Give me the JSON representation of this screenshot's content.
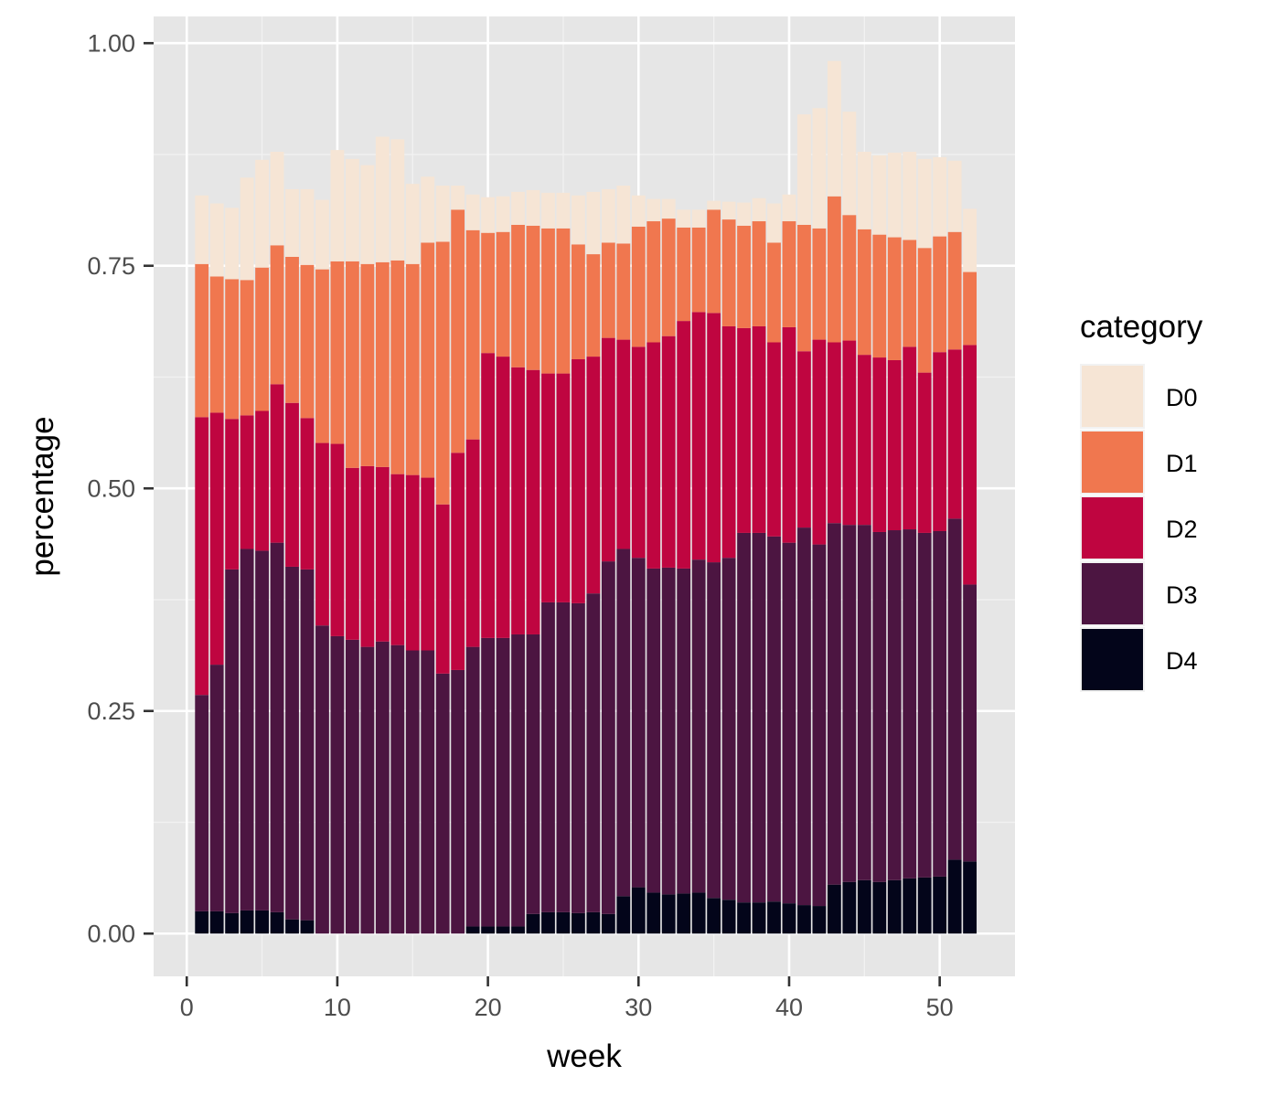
{
  "chart_data": {
    "type": "bar",
    "stacked": true,
    "title": "",
    "xlabel": "week",
    "ylabel": "percentage",
    "xlim": [
      -2.2,
      55.0
    ],
    "ylim": [
      -0.048,
      1.03
    ],
    "x_ticks": [
      0,
      10,
      20,
      30,
      40,
      50
    ],
    "x_tick_labels": [
      "0",
      "10",
      "20",
      "30",
      "40",
      "50"
    ],
    "y_ticks": [
      0,
      0.25,
      0.5,
      0.75,
      1
    ],
    "y_tick_labels": [
      "0.00",
      "0.25",
      "0.50",
      "0.75",
      "1.00"
    ],
    "grid": true,
    "legend": {
      "title": "category",
      "position": "right"
    },
    "x": [
      1,
      2,
      3,
      4,
      5,
      6,
      7,
      8,
      9,
      10,
      11,
      12,
      13,
      14,
      15,
      16,
      17,
      18,
      19,
      20,
      21,
      22,
      23,
      24,
      25,
      26,
      27,
      28,
      29,
      30,
      31,
      32,
      33,
      34,
      35,
      36,
      37,
      38,
      39,
      40,
      41,
      42,
      43,
      44,
      45,
      46,
      47,
      48,
      49,
      50,
      51,
      52
    ],
    "series": [
      {
        "name": "D4",
        "color": "#03051a",
        "values": [
          0.025,
          0.025,
          0.023,
          0.026,
          0.026,
          0.024,
          0.016,
          0.015,
          0,
          0,
          0,
          0,
          0,
          0,
          0,
          0,
          0,
          0,
          0.008,
          0.008,
          0.008,
          0.008,
          0.022,
          0.024,
          0.024,
          0.023,
          0.024,
          0.022,
          0.042,
          0.052,
          0.046,
          0.044,
          0.045,
          0.046,
          0.04,
          0.038,
          0.035,
          0.035,
          0.036,
          0.034,
          0.032,
          0.031,
          0.055,
          0.058,
          0.06,
          0.058,
          0.06,
          0.062,
          0.063,
          0.064,
          0.083,
          0.081
        ]
      },
      {
        "name": "D3",
        "color": "#4c1541",
        "values": [
          0.243,
          0.277,
          0.386,
          0.406,
          0.404,
          0.415,
          0.396,
          0.394,
          0.346,
          0.334,
          0.33,
          0.322,
          0.328,
          0.324,
          0.318,
          0.318,
          0.292,
          0.296,
          0.314,
          0.324,
          0.324,
          0.328,
          0.314,
          0.348,
          0.348,
          0.348,
          0.358,
          0.396,
          0.39,
          0.37,
          0.364,
          0.367,
          0.365,
          0.374,
          0.377,
          0.384,
          0.415,
          0.415,
          0.41,
          0.405,
          0.424,
          0.406,
          0.406,
          0.401,
          0.399,
          0.393,
          0.393,
          0.392,
          0.387,
          0.388,
          0.383,
          0.311
        ]
      },
      {
        "name": "D2",
        "color": "#bf0540",
        "values": [
          0.312,
          0.283,
          0.169,
          0.15,
          0.157,
          0.178,
          0.184,
          0.17,
          0.205,
          0.216,
          0.193,
          0.203,
          0.196,
          0.192,
          0.197,
          0.194,
          0.19,
          0.244,
          0.233,
          0.32,
          0.316,
          0.3,
          0.297,
          0.257,
          0.257,
          0.274,
          0.266,
          0.251,
          0.235,
          0.237,
          0.254,
          0.26,
          0.278,
          0.278,
          0.28,
          0.26,
          0.23,
          0.232,
          0.218,
          0.242,
          0.198,
          0.23,
          0.203,
          0.207,
          0.191,
          0.196,
          0.191,
          0.205,
          0.18,
          0.201,
          0.19,
          0.269
        ]
      },
      {
        "name": "D1",
        "color": "#f0774f",
        "values": [
          0.172,
          0.153,
          0.157,
          0.152,
          0.161,
          0.156,
          0.164,
          0.172,
          0.195,
          0.205,
          0.232,
          0.227,
          0.23,
          0.24,
          0.237,
          0.264,
          0.295,
          0.273,
          0.235,
          0.135,
          0.14,
          0.16,
          0.162,
          0.163,
          0.163,
          0.129,
          0.115,
          0.107,
          0.108,
          0.135,
          0.136,
          0.132,
          0.105,
          0.095,
          0.116,
          0.12,
          0.115,
          0.118,
          0.112,
          0.119,
          0.142,
          0.125,
          0.164,
          0.141,
          0.141,
          0.138,
          0.138,
          0.12,
          0.14,
          0.13,
          0.132,
          0.082
        ]
      },
      {
        "name": "D0",
        "color": "#f6e5d5",
        "values": [
          0.077,
          0.082,
          0.08,
          0.115,
          0.121,
          0.105,
          0.076,
          0.085,
          0.078,
          0.125,
          0.115,
          0.111,
          0.141,
          0.136,
          0.09,
          0.074,
          0.063,
          0.027,
          0.04,
          0.04,
          0.04,
          0.037,
          0.04,
          0.04,
          0.04,
          0.055,
          0.07,
          0.06,
          0.065,
          0.035,
          0.025,
          0.022,
          0.02,
          0.02,
          0.01,
          0.02,
          0.026,
          0.026,
          0.044,
          0.03,
          0.124,
          0.135,
          0.152,
          0.116,
          0.087,
          0.089,
          0.095,
          0.099,
          0.1,
          0.089,
          0.08,
          0.071
        ]
      }
    ]
  }
}
